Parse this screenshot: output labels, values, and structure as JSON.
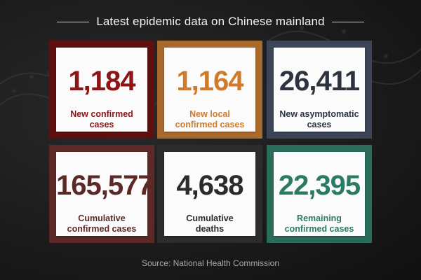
{
  "header": {
    "title": "Latest epidemic data on Chinese mainland"
  },
  "cards": [
    {
      "value": "1,184",
      "label_line1": "New confirmed",
      "label_line2": "cases",
      "color": "#8b1414"
    },
    {
      "value": "1,164",
      "label_line1": "New local",
      "label_line2": "confirmed cases",
      "color": "#d07b2b"
    },
    {
      "value": "26,411",
      "label_line1": "New asymptomatic",
      "label_line2": "cases",
      "color": "#2d3440"
    },
    {
      "value": "165,577",
      "label_line1": "Cumulative",
      "label_line2": "confirmed cases",
      "color": "#5b2a27"
    },
    {
      "value": "4,638",
      "label_line1": "Cumulative",
      "label_line2": "deaths",
      "color": "#2b2b2b"
    },
    {
      "value": "22,395",
      "label_line1": "Remaining",
      "label_line2": "confirmed cases",
      "color": "#2b7a64"
    }
  ],
  "footer": {
    "source": "Source: National Health Commission"
  }
}
